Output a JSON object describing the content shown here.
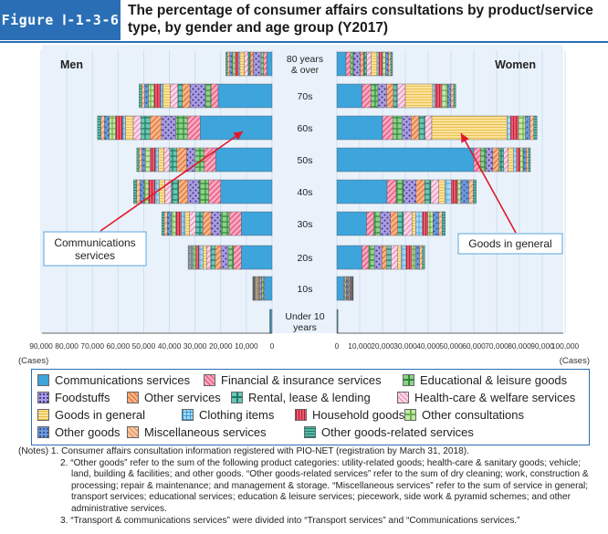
{
  "figure": {
    "label": "Figure Ⅰ-1-3-6",
    "title": "The percentage of consumer affairs consultations by product/service type, by gender and age group (Y2017)"
  },
  "chart_data": {
    "type": "bar",
    "orientation": "horizontal-population-pyramid-stacked",
    "panels": [
      "Men",
      "Women"
    ],
    "age_groups": [
      "80 years\n& over",
      "70s",
      "60s",
      "50s",
      "40s",
      "30s",
      "20s",
      "10s",
      "Under 10\nyears"
    ],
    "xlabel": "(Cases)",
    "men_axis": {
      "range": [
        90000,
        0
      ],
      "ticks": [
        "90,000",
        "80,000",
        "70,000",
        "60,000",
        "50,000",
        "40,000",
        "30,000",
        "20,000",
        "10,000",
        "0"
      ]
    },
    "women_axis": {
      "range": [
        0,
        100000
      ],
      "ticks": [
        "0",
        "10,000",
        "20,000",
        "30,000",
        "40,000",
        "50,000",
        "60,000",
        "70,000",
        "80,000",
        "90,000",
        "100,000"
      ]
    },
    "categories": [
      "Communications services",
      "Financial & insurance services",
      "Educational & leisure goods",
      "Foodstuffs",
      "Other services",
      "Rental, lease & lending",
      "Health-care & welfare services",
      "Goods in general",
      "Clothing items",
      "Household goods",
      "Other consultations",
      "Other goods",
      "Miscellaneous services",
      "Other goods-related services"
    ],
    "colors": [
      "#3da4dc",
      "#f7a8c0",
      "#8fd08a",
      "#a99ee0",
      "#f6b38a",
      "#69c7b3",
      "#fbd7e8",
      "#fbe19a",
      "#a9d8f3",
      "#eb5a6e",
      "#c3e8a8",
      "#6f9ad8",
      "#f9c7a3",
      "#57b9a5"
    ],
    "men": [
      {
        "age": "80 years & over",
        "values": [
          2000,
          1300,
          1000,
          3000,
          1200,
          800,
          1500,
          1700,
          600,
          1300,
          1100,
          1000,
          900,
          600
        ]
      },
      {
        "age": "70s",
        "values": [
          21000,
          2800,
          2200,
          6000,
          3000,
          1700,
          3000,
          2800,
          1000,
          2500,
          2200,
          1500,
          1100,
          1000
        ]
      },
      {
        "age": "60s",
        "values": [
          28000,
          5000,
          4500,
          5600,
          4500,
          3500,
          3000,
          3000,
          1200,
          2700,
          2500,
          1800,
          1400,
          1300
        ]
      },
      {
        "age": "50s",
        "values": [
          22000,
          4500,
          3500,
          3300,
          3800,
          2800,
          2300,
          2000,
          1300,
          2000,
          1900,
          1300,
          1200,
          800
        ]
      },
      {
        "age": "40s",
        "values": [
          20000,
          4700,
          3700,
          4400,
          3600,
          2900,
          2500,
          2200,
          1600,
          2500,
          1700,
          1600,
          1400,
          1200
        ]
      },
      {
        "age": "30s",
        "values": [
          12000,
          4700,
          3300,
          3800,
          3200,
          2800,
          2300,
          1800,
          1500,
          2100,
          1800,
          1500,
          1200,
          1000
        ]
      },
      {
        "age": "20s",
        "values": [
          12000,
          3000,
          2100,
          2800,
          2200,
          1800,
          1600,
          1400,
          1600,
          1200,
          1200,
          800,
          600,
          400
        ]
      },
      {
        "age": "10s",
        "values": [
          3000,
          300,
          800,
          700,
          400,
          300,
          300,
          500,
          300,
          200,
          200,
          200,
          150,
          150
        ]
      },
      {
        "age": "Under 10 years",
        "values": [
          600,
          0,
          200,
          100,
          0,
          0,
          0,
          0,
          0,
          0,
          0,
          0,
          0,
          0
        ]
      }
    ],
    "women": [
      {
        "age": "80 years & over",
        "values": [
          4000,
          2000,
          1300,
          3000,
          1500,
          1300,
          2000,
          2500,
          800,
          1600,
          1400,
          1200,
          1000,
          800
        ]
      },
      {
        "age": "70s",
        "values": [
          11000,
          4000,
          3000,
          3800,
          3000,
          1700,
          3500,
          12000,
          1000,
          3000,
          2500,
          1500,
          1200,
          900
        ]
      },
      {
        "age": "60s",
        "values": [
          20000,
          4500,
          4000,
          4000,
          3500,
          2600,
          3000,
          33000,
          1500,
          3500,
          3000,
          2000,
          1700,
          1400
        ]
      },
      {
        "age": "50s",
        "values": [
          60000,
          3000,
          2300,
          3000,
          2800,
          2000,
          2000,
          2200,
          1400,
          1600,
          1500,
          1200,
          1000,
          800
        ]
      },
      {
        "age": "40s",
        "values": [
          22000,
          4000,
          3200,
          5500,
          3800,
          2700,
          3500,
          2700,
          2700,
          2700,
          1500,
          3500,
          2000,
          1300
        ]
      },
      {
        "age": "30s",
        "values": [
          13000,
          3200,
          2800,
          4500,
          3200,
          2500,
          3700,
          1600,
          3000,
          2400,
          2200,
          2600,
          1400,
          1400
        ]
      },
      {
        "age": "20s",
        "values": [
          11000,
          3000,
          2500,
          3200,
          2200,
          1900,
          2900,
          1500,
          2100,
          2500,
          1600,
          1800,
          1300,
          1000
        ]
      },
      {
        "age": "10s",
        "values": [
          3000,
          500,
          700,
          500,
          300,
          300,
          400,
          200,
          300,
          300,
          200,
          200,
          200,
          100
        ]
      },
      {
        "age": "Under 10 years",
        "values": [
          300,
          0,
          200,
          0,
          0,
          0,
          0,
          0,
          0,
          0,
          0,
          0,
          0,
          0
        ]
      }
    ],
    "annotations": [
      {
        "text": "Communications\nservices",
        "panel": "Men"
      },
      {
        "text": "Goods in general",
        "panel": "Women"
      }
    ]
  },
  "legend": {
    "items": [
      {
        "label": "Communications services",
        "color": "#3da4dc"
      },
      {
        "label": "Financial & insurance services",
        "color": "#f7a8c0"
      },
      {
        "label": "Educational & leisure goods",
        "color": "#8fd08a"
      },
      {
        "label": "Foodstuffs",
        "color": "#a99ee0"
      },
      {
        "label": "Other services",
        "color": "#f6b38a"
      },
      {
        "label": "Rental, lease & lending",
        "color": "#69c7b3"
      },
      {
        "label": "Health-care & welfare services",
        "color": "#fbd7e8"
      },
      {
        "label": "Goods in general",
        "color": "#fbe19a"
      },
      {
        "label": "Clothing items",
        "color": "#a9d8f3"
      },
      {
        "label": "Household goods",
        "color": "#eb5a6e"
      },
      {
        "label": "Other consultations",
        "color": "#c3e8a8"
      },
      {
        "label": "Other goods",
        "color": "#6f9ad8"
      },
      {
        "label": "Miscellaneous services",
        "color": "#f9c7a3"
      },
      {
        "label": "Other goods-related services",
        "color": "#57b9a5"
      }
    ]
  },
  "notes": {
    "line1": "(Notes) 1. Consumer affairs consultation information registered with PIO-NET (registration by March 31, 2018).",
    "line2": "2. “Other goods” refer to the sum of the following product categories: utility-related goods; health-care & sanitary goods; vehicle; land, building & facilities; and other goods. “Other goods-related services” refer to the sum of dry cleaning; work, construction & processing; repair & maintenance; and management & storage. “Miscellaneous services” refer to the sum of service in general; transport services; educational services; education & leisure services; piecework, side work & pyramid schemes; and other administrative services.",
    "line3": "3. “Transport & communications services” were divided into “Transport services” and “Communications services.”"
  }
}
